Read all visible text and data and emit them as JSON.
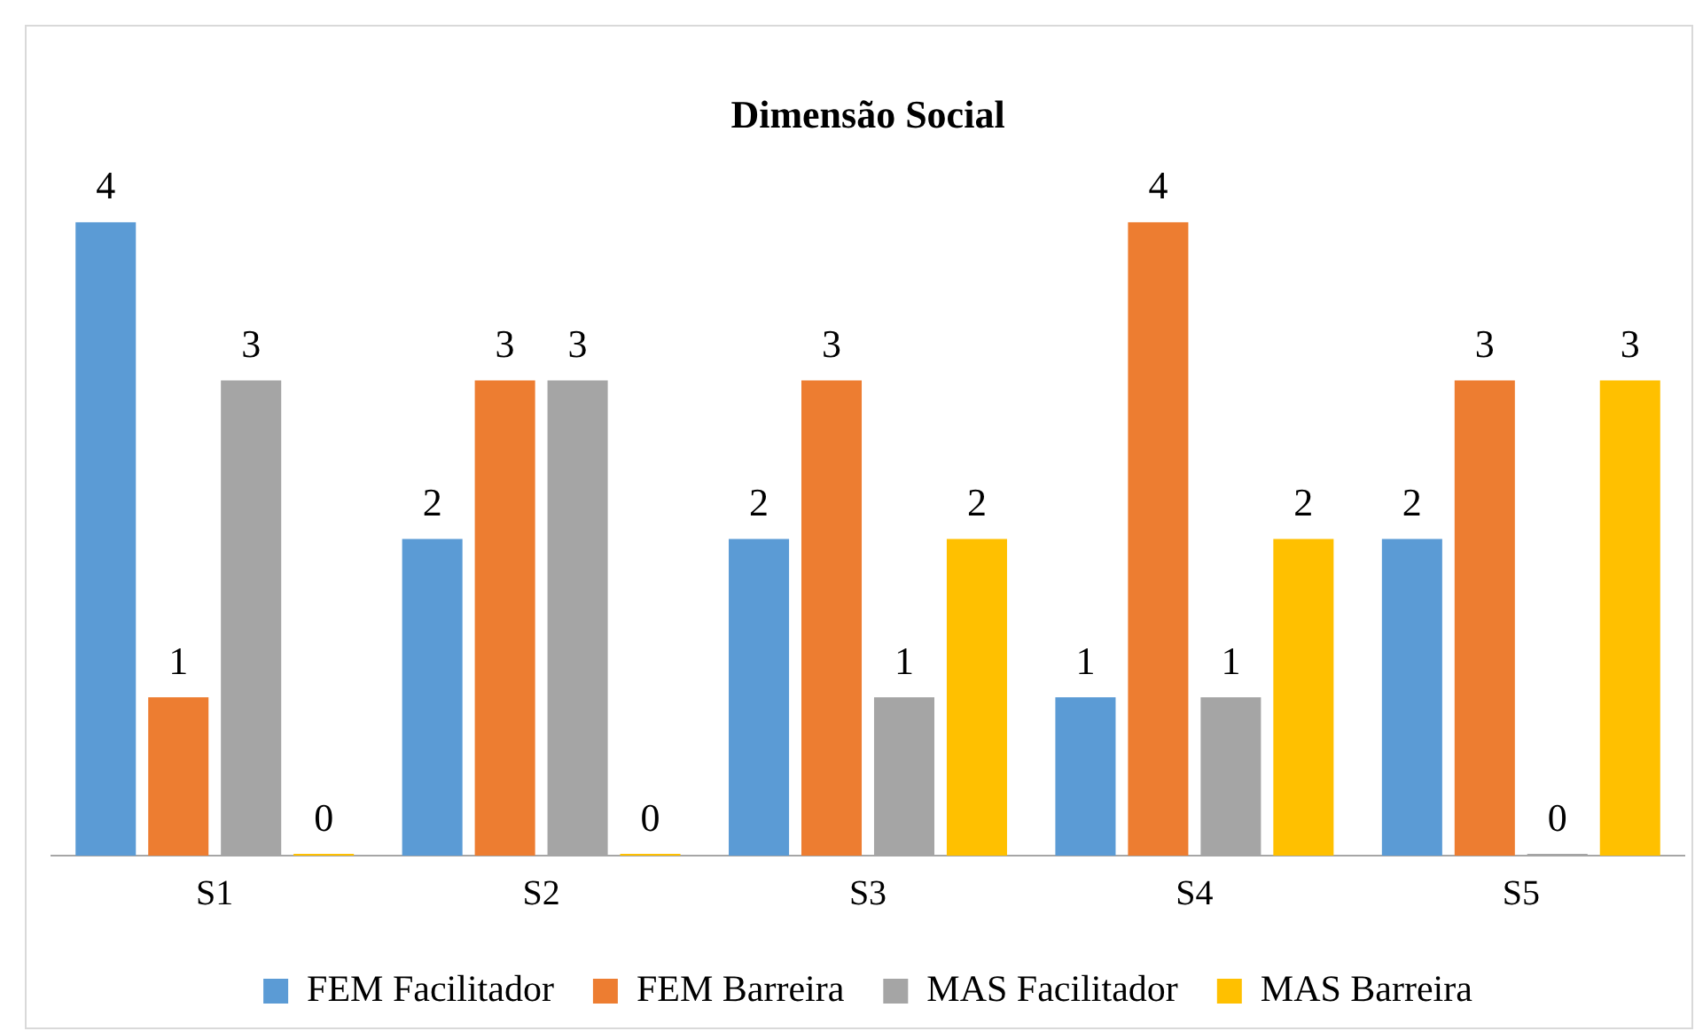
{
  "chart_data": {
    "type": "bar",
    "title": "Dimensão Social",
    "categories": [
      "S1",
      "S2",
      "S3",
      "S4",
      "S5"
    ],
    "series": [
      {
        "name": "FEM Facilitador",
        "color": "#5b9bd5",
        "values": [
          4,
          2,
          2,
          1,
          2
        ]
      },
      {
        "name": "FEM Barreira",
        "color": "#ed7d31",
        "values": [
          1,
          3,
          3,
          4,
          3
        ]
      },
      {
        "name": "MAS Facilitador",
        "color": "#a5a5a5",
        "values": [
          3,
          3,
          1,
          1,
          0
        ]
      },
      {
        "name": "MAS Barreira",
        "color": "#ffc000",
        "values": [
          0,
          0,
          2,
          2,
          3
        ]
      }
    ],
    "ylim": [
      0,
      4
    ],
    "tick_labels": "x",
    "data_labels": true,
    "grid": false,
    "legend": "bottom"
  }
}
